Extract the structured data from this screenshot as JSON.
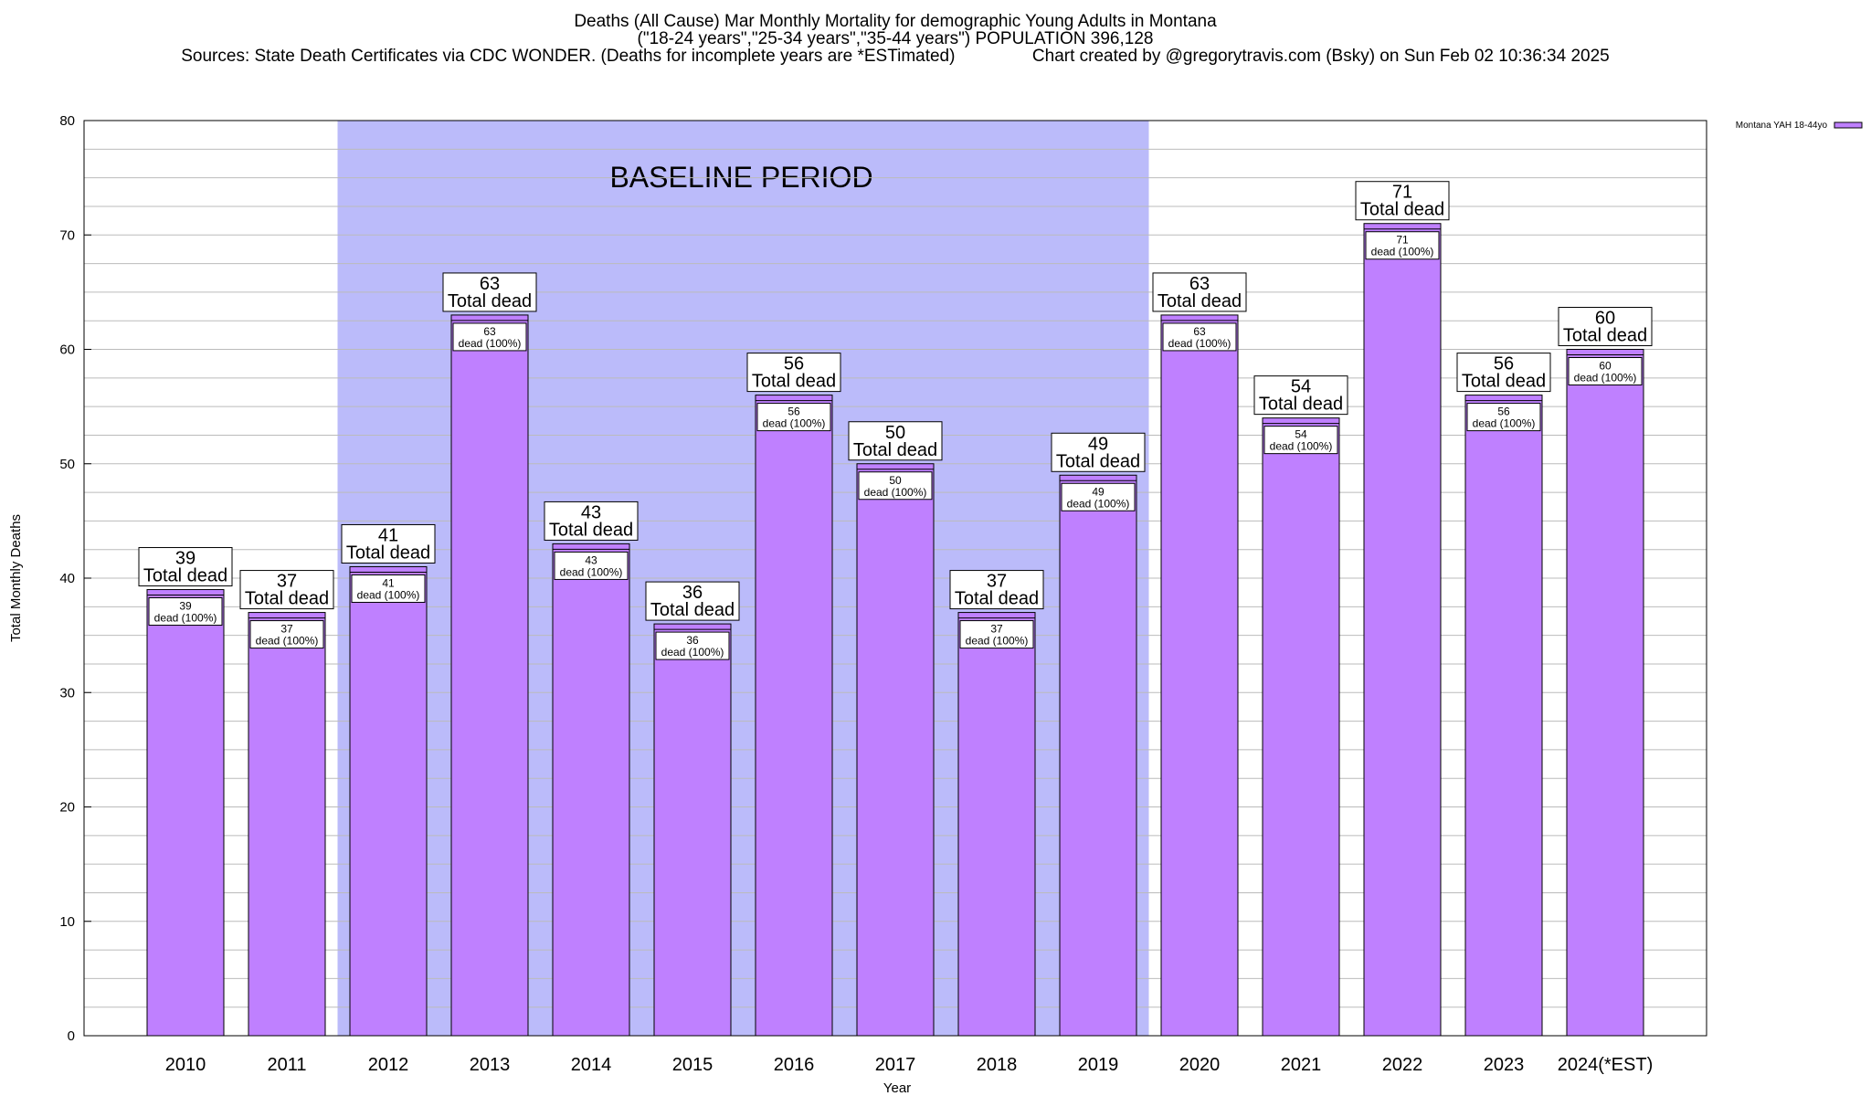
{
  "chart_data": {
    "type": "bar",
    "title_lines": [
      "Deaths (All Cause) Mar Monthly Mortality for demographic Young Adults in Montana",
      "(\"18-24 years\",\"25-34 years\",\"35-44 years\") POPULATION 396,128",
      "Sources: State Death Certificates via CDC WONDER. (Deaths for incomplete years are *ESTimated)                Chart created by @gregorytravis.com (Bsky) on Sun Feb 02 10:36:34 2025"
    ],
    "xlabel": "Year",
    "ylabel": "Total Monthly Deaths",
    "ylim": [
      0,
      80
    ],
    "y_ticks": [
      0,
      10,
      20,
      30,
      40,
      50,
      60,
      70,
      80
    ],
    "grid": true,
    "legend": {
      "position": "top-right",
      "label": "Montana YAH 18-44yo"
    },
    "categories": [
      "2010",
      "2011",
      "2012",
      "2013",
      "2014",
      "2015",
      "2016",
      "2017",
      "2018",
      "2019",
      "2020",
      "2021",
      "2022",
      "2023",
      "2024(*EST)"
    ],
    "series": [
      {
        "name": "Montana YAH 18-44yo",
        "values": [
          39,
          37,
          41,
          63,
          43,
          36,
          56,
          50,
          37,
          49,
          63,
          54,
          71,
          56,
          60
        ]
      }
    ],
    "total_label_text": "Total dead",
    "inner_label_text": "dead (100%)",
    "baseline": {
      "label": "BASELINE PERIOD",
      "start": "2012",
      "end": "2019"
    },
    "colors": {
      "bar": "#bf80ff",
      "baseline": "#bbbbfa",
      "grid": "#bbbbbb"
    }
  }
}
